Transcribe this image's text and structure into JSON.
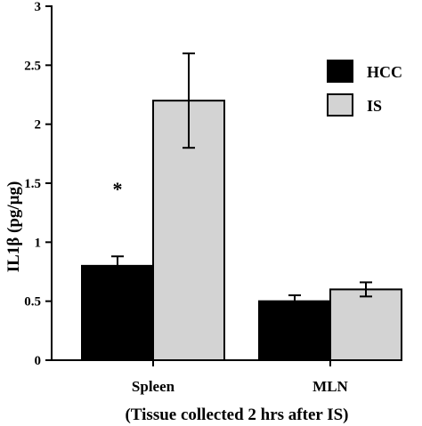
{
  "chart_data": {
    "type": "bar",
    "title": "",
    "xlabel": "(Tissue collected 2 hrs after IS)",
    "ylabel": "IL1β (pg/μg)",
    "ylim": [
      0,
      3
    ],
    "yticks": [
      "0",
      "0.5",
      "1",
      "1.5",
      "2",
      "2.5",
      "3"
    ],
    "grid": false,
    "legend_position": "top-right",
    "categories": [
      "Spleen",
      "MLN"
    ],
    "series": [
      {
        "name": "HCC",
        "color": "#000000",
        "values": [
          0.8,
          0.5
        ],
        "errors": [
          0.08,
          0.05
        ]
      },
      {
        "name": "IS",
        "color": "#d3d3d3",
        "values": [
          2.2,
          0.6
        ],
        "errors": [
          0.4,
          0.06
        ]
      }
    ],
    "annotations": [
      {
        "text": "*",
        "category": "Spleen",
        "series": "HCC",
        "y": 1.5
      }
    ]
  }
}
